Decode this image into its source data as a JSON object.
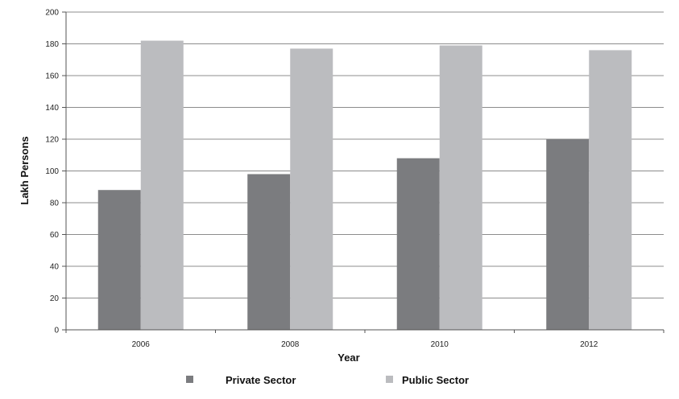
{
  "chart_data": {
    "type": "bar",
    "categories": [
      "2006",
      "2008",
      "2010",
      "2012"
    ],
    "series": [
      {
        "name": "Private Sector",
        "values": [
          88,
          98,
          108,
          120
        ],
        "color": "#7b7c7f"
      },
      {
        "name": "Public Sector",
        "values": [
          182,
          177,
          179,
          176
        ],
        "color": "#bbbcbf"
      }
    ],
    "title": "",
    "xlabel": "Year",
    "ylabel": "Lakh Persons",
    "ylim": [
      0,
      200
    ],
    "yticks": [
      "0",
      "20",
      "40",
      "60",
      "80",
      "100",
      "120",
      "140",
      "160",
      "180",
      "200"
    ],
    "grid": true,
    "legend_position": "bottom"
  }
}
